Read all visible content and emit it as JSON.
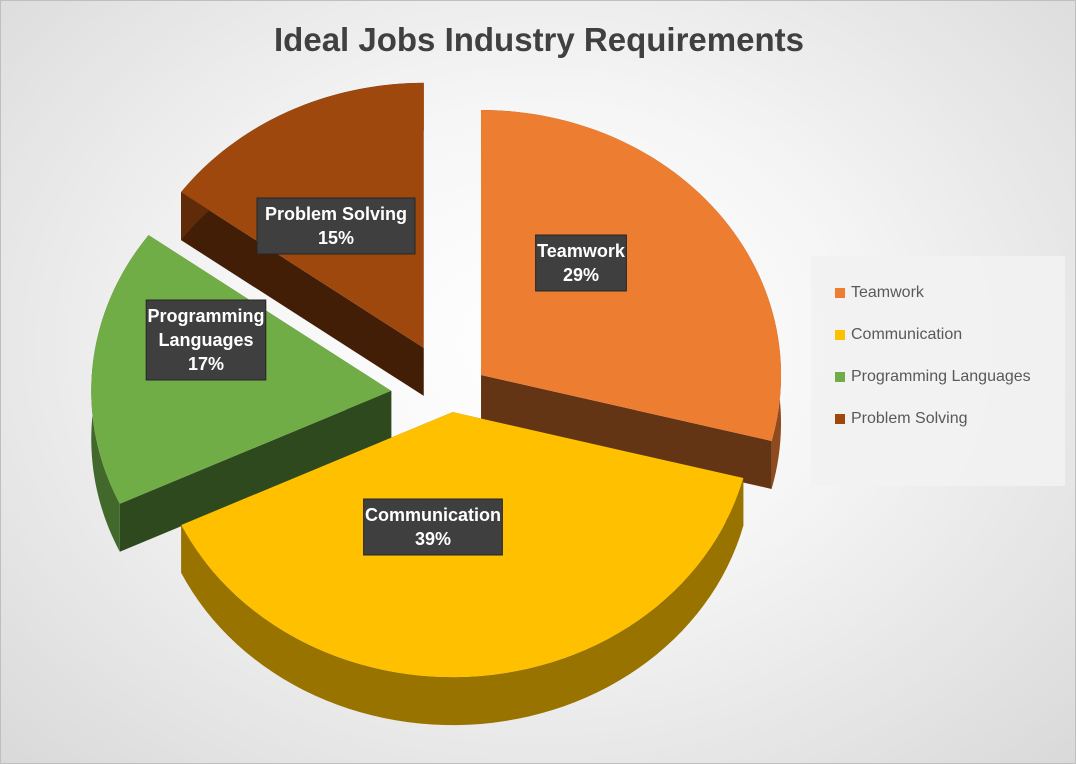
{
  "chart_data": {
    "type": "pie",
    "title": "Ideal Jobs Industry Requirements",
    "categories": [
      "Teamwork",
      "Communication",
      "Programming Languages",
      "Problem Solving"
    ],
    "values": [
      29,
      39,
      17,
      15
    ],
    "value_labels": [
      "29%",
      "39%",
      "17%",
      "15%"
    ],
    "label_lines": [
      [
        "Teamwork",
        "29%"
      ],
      [
        "Communication",
        "39%"
      ],
      [
        "Programming",
        "Languages",
        "17%"
      ],
      [
        "Problem Solving",
        "15%"
      ]
    ],
    "colors": [
      "#ED7D31",
      "#FFC000",
      "#70AD47",
      "#9E480E"
    ],
    "exploded": true,
    "style": "3d",
    "legend": "right"
  }
}
